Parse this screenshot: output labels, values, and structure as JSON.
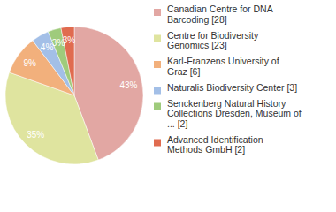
{
  "chart_data": {
    "type": "pie",
    "categories": [
      "Canadian Centre for DNA\nBarcoding [28]",
      "Centre for Biodiversity\nGenomics [23]",
      "Karl-Franzens University of\nGraz [6]",
      "Naturalis Biodiversity Center [3]",
      "Senckenberg Natural History\nCollections Dresden, Museum of\n... [2]",
      "Advanced Identification\nMethods GmbH [2]"
    ],
    "values": [
      43,
      35,
      9,
      4,
      3,
      3
    ],
    "value_labels": [
      "43%",
      "35%",
      "9%",
      "4%",
      "3%",
      "3%"
    ],
    "colors": [
      "#e2a7a3",
      "#dfe49f",
      "#f2b07c",
      "#a3bfe7",
      "#9fcb7c",
      "#e06b4f"
    ],
    "data_labels": true,
    "legend": "right"
  }
}
